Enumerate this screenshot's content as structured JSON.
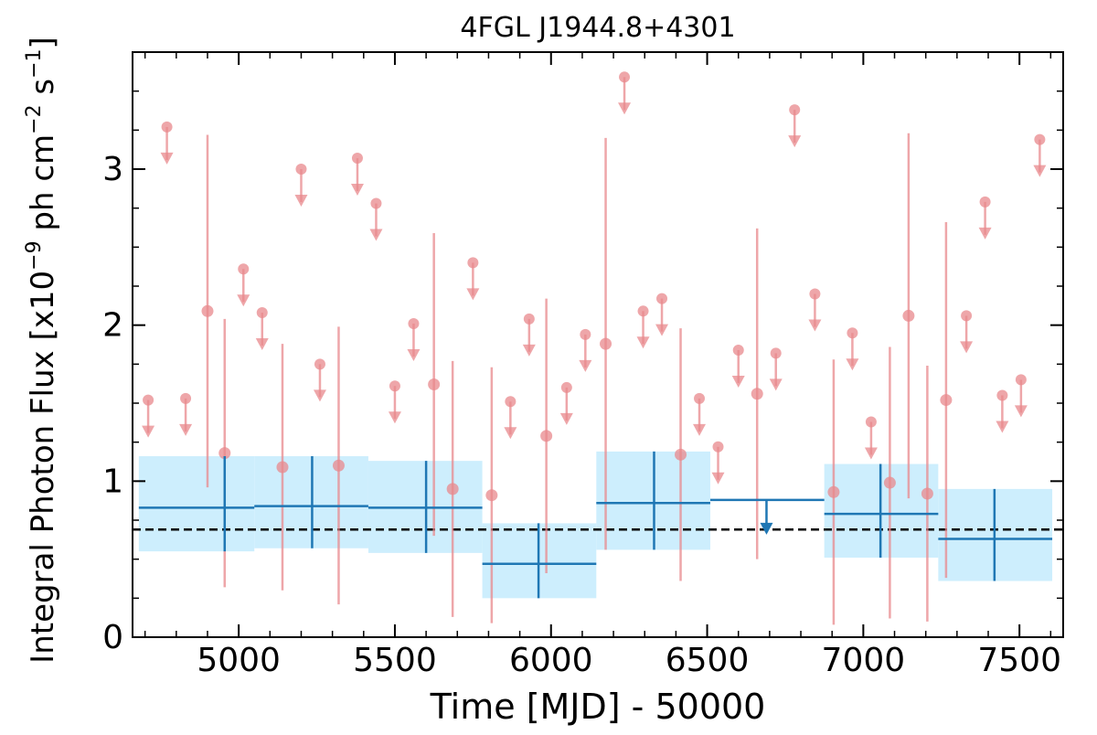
{
  "chart_data": {
    "type": "scatter",
    "title": "4FGL J1944.8+4301",
    "xlabel": "Time [MJD] - 50000",
    "ylabel": "Integral Photon Flux [x10",
    "ylabel_exp": "−9",
    "ylabel_mid": " ph cm",
    "ylabel_exp2": "−2",
    "ylabel_mid2": " s",
    "ylabel_exp3": "−1",
    "ylabel_end": "]",
    "xlim": [
      4660,
      7640
    ],
    "ylim": [
      0,
      3.75
    ],
    "x_ticks": [
      5000,
      5500,
      6000,
      6500,
      7000,
      7500
    ],
    "y_ticks": [
      0,
      1,
      2,
      3
    ],
    "x_tick_labels": [
      "5000",
      "5500",
      "6000",
      "6500",
      "7000",
      "7500"
    ],
    "y_tick_labels": [
      "0",
      "1",
      "2",
      "3"
    ],
    "colors": {
      "short_bins": "#e8888c",
      "long_bins": "#1f77b4",
      "long_band": "#cdeefd",
      "reference": "#000000"
    },
    "reference_flux": 0.69,
    "short_bin_detections": [
      {
        "x": 4900,
        "y": 2.09,
        "err": 1.13
      },
      {
        "x": 4955,
        "y": 1.18,
        "err": 0.86
      },
      {
        "x": 5140,
        "y": 1.09,
        "err": 0.79
      },
      {
        "x": 5320,
        "y": 1.1,
        "err": 0.89
      },
      {
        "x": 5625,
        "y": 1.62,
        "err": 0.97
      },
      {
        "x": 5685,
        "y": 0.95,
        "err": 0.82
      },
      {
        "x": 5810,
        "y": 0.91,
        "err": 0.82
      },
      {
        "x": 5985,
        "y": 1.29,
        "err": 0.88
      },
      {
        "x": 6175,
        "y": 1.88,
        "err": 1.32
      },
      {
        "x": 6415,
        "y": 1.17,
        "err": 0.81
      },
      {
        "x": 6660,
        "y": 1.56,
        "err": 1.06
      },
      {
        "x": 6905,
        "y": 0.93,
        "err": 0.85
      },
      {
        "x": 7085,
        "y": 0.99,
        "err": 0.87
      },
      {
        "x": 7145,
        "y": 2.06,
        "err": 1.17
      },
      {
        "x": 7205,
        "y": 0.92,
        "err": 0.82
      },
      {
        "x": 7265,
        "y": 1.52,
        "err": 1.14
      }
    ],
    "short_bin_upper_limits": [
      {
        "x": 4710,
        "y": 1.52
      },
      {
        "x": 4770,
        "y": 3.27
      },
      {
        "x": 4830,
        "y": 1.53
      },
      {
        "x": 5015,
        "y": 2.36
      },
      {
        "x": 5075,
        "y": 2.08
      },
      {
        "x": 5200,
        "y": 3.0
      },
      {
        "x": 5260,
        "y": 1.75
      },
      {
        "x": 5380,
        "y": 3.07
      },
      {
        "x": 5440,
        "y": 2.78
      },
      {
        "x": 5500,
        "y": 1.61
      },
      {
        "x": 5560,
        "y": 2.01
      },
      {
        "x": 5750,
        "y": 2.4
      },
      {
        "x": 5870,
        "y": 1.51
      },
      {
        "x": 5930,
        "y": 2.04
      },
      {
        "x": 6050,
        "y": 1.6
      },
      {
        "x": 6110,
        "y": 1.94
      },
      {
        "x": 6235,
        "y": 3.59
      },
      {
        "x": 6295,
        "y": 2.09
      },
      {
        "x": 6355,
        "y": 2.17
      },
      {
        "x": 6475,
        "y": 1.53
      },
      {
        "x": 6535,
        "y": 1.22
      },
      {
        "x": 6600,
        "y": 1.84
      },
      {
        "x": 6720,
        "y": 1.82
      },
      {
        "x": 6780,
        "y": 3.38
      },
      {
        "x": 6845,
        "y": 2.2
      },
      {
        "x": 6965,
        "y": 1.95
      },
      {
        "x": 7025,
        "y": 1.38
      },
      {
        "x": 7330,
        "y": 2.06
      },
      {
        "x": 7390,
        "y": 2.79
      },
      {
        "x": 7445,
        "y": 1.55
      },
      {
        "x": 7505,
        "y": 1.65
      },
      {
        "x": 7565,
        "y": 3.19
      }
    ],
    "long_bins": [
      {
        "x0": 4680,
        "x1": 5050,
        "xc": 4955,
        "y": 0.83,
        "ylo": 0.55,
        "yhi": 1.16
      },
      {
        "x0": 5050,
        "x1": 5415,
        "xc": 5235,
        "y": 0.84,
        "ylo": 0.57,
        "yhi": 1.16
      },
      {
        "x0": 5415,
        "x1": 5780,
        "xc": 5600,
        "y": 0.83,
        "ylo": 0.54,
        "yhi": 1.13
      },
      {
        "x0": 5780,
        "x1": 6145,
        "xc": 5960,
        "y": 0.47,
        "ylo": 0.25,
        "yhi": 0.73
      },
      {
        "x0": 6145,
        "x1": 6510,
        "xc": 6330,
        "y": 0.86,
        "ylo": 0.56,
        "yhi": 1.19
      },
      {
        "x0": 6875,
        "x1": 7240,
        "xc": 7055,
        "y": 0.79,
        "ylo": 0.51,
        "yhi": 1.11
      },
      {
        "x0": 7240,
        "x1": 7605,
        "xc": 7420,
        "y": 0.63,
        "ylo": 0.36,
        "yhi": 0.95
      }
    ],
    "long_bin_upper_limits": [
      {
        "x0": 6510,
        "x1": 6875,
        "xc": 6690,
        "y": 0.88
      }
    ]
  }
}
